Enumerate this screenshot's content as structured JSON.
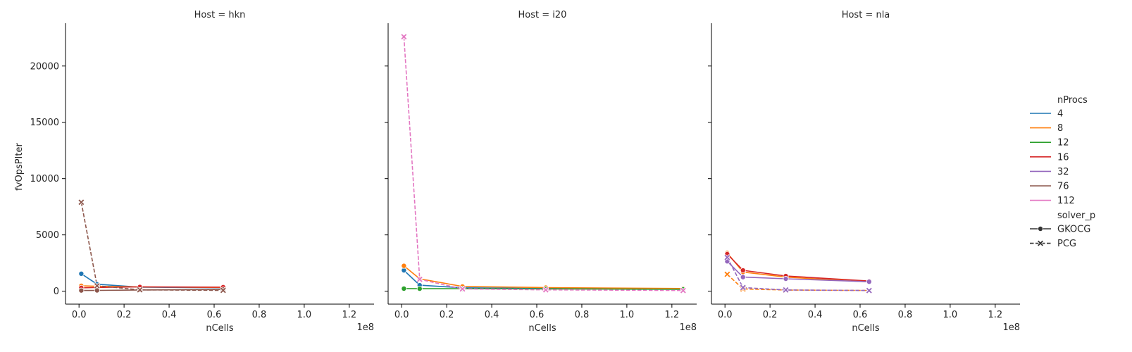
{
  "chart_data": {
    "type": "line",
    "y_label": "fvOpsPIter",
    "x_label": "nCells",
    "x_offset_label": "1e8",
    "xlim": [
      -0.06,
      1.31
    ],
    "ylim": [
      -1150,
      23800
    ],
    "x_ticks": [
      0.0,
      0.2,
      0.4,
      0.6,
      0.8,
      1.0,
      1.2
    ],
    "x_tick_labels": [
      "0.0",
      "0.2",
      "0.4",
      "0.6",
      "0.8",
      "1.0",
      "1.2"
    ],
    "y_ticks": [
      0,
      5000,
      10000,
      15000,
      20000
    ],
    "y_tick_labels": [
      "0",
      "5000",
      "10000",
      "15000",
      "20000"
    ],
    "legend": {
      "title_hue": "nProcs",
      "title_style": "solver_p",
      "hue_entries": [
        {
          "label": "4",
          "color": "#1f77b4"
        },
        {
          "label": "8",
          "color": "#ff7f0e"
        },
        {
          "label": "12",
          "color": "#2ca02c"
        },
        {
          "label": "16",
          "color": "#d62728"
        },
        {
          "label": "32",
          "color": "#9467bd"
        },
        {
          "label": "76",
          "color": "#8c564b"
        },
        {
          "label": "112",
          "color": "#e377c2"
        }
      ],
      "style_entries": [
        {
          "label": "GKOCG",
          "marker": "circle",
          "dash": "solid"
        },
        {
          "label": "PCG",
          "marker": "x",
          "dash": "dashed"
        }
      ]
    },
    "panels": [
      {
        "title": "Host = hkn",
        "series": [
          {
            "nprocs": "4",
            "solver": "GKOCG",
            "x": [
              0.01,
              0.08,
              0.27,
              0.64
            ],
            "y": [
              1550,
              620,
              360,
              310
            ]
          },
          {
            "nprocs": "8",
            "solver": "GKOCG",
            "x": [
              0.01,
              0.08,
              0.27,
              0.64
            ],
            "y": [
              480,
              430,
              380,
              330
            ]
          },
          {
            "nprocs": "16",
            "solver": "GKOCG",
            "x": [
              0.01,
              0.08,
              0.27,
              0.64
            ],
            "y": [
              300,
              330,
              380,
              360
            ]
          },
          {
            "nprocs": "76",
            "solver": "GKOCG",
            "x": [
              0.01,
              0.08,
              0.27,
              0.64
            ],
            "y": [
              60,
              70,
              110,
              150
            ]
          },
          {
            "nprocs": "76",
            "solver": "PCG",
            "x": [
              0.01,
              0.08,
              0.27,
              0.64
            ],
            "y": [
              7900,
              480,
              120,
              70
            ]
          }
        ]
      },
      {
        "title": "Host = i20",
        "series": [
          {
            "nprocs": "4",
            "solver": "GKOCG",
            "x": [
              0.01,
              0.08,
              0.27,
              0.64,
              1.25
            ],
            "y": [
              1850,
              530,
              300,
              250,
              180
            ]
          },
          {
            "nprocs": "8",
            "solver": "GKOCG",
            "x": [
              0.01,
              0.08,
              0.27,
              0.64,
              1.25
            ],
            "y": [
              2250,
              1100,
              420,
              320,
              240
            ]
          },
          {
            "nprocs": "12",
            "solver": "GKOCG",
            "x": [
              0.01,
              0.08,
              0.27,
              0.64,
              1.25
            ],
            "y": [
              230,
              220,
              220,
              200,
              170
            ]
          },
          {
            "nprocs": "112",
            "solver": "PCG",
            "x": [
              0.01,
              0.08,
              0.27,
              0.64,
              1.25
            ],
            "y": [
              22600,
              1050,
              200,
              120,
              60
            ]
          }
        ]
      },
      {
        "title": "Host = nla",
        "series": [
          {
            "nprocs": "8",
            "solver": "GKOCG",
            "x": [
              0.01,
              0.08,
              0.27,
              0.64
            ],
            "y": [
              3400,
              1700,
              1250,
              820
            ]
          },
          {
            "nprocs": "8",
            "solver": "PCG",
            "x": [
              0.01,
              0.08,
              0.27,
              0.64
            ],
            "y": [
              1500,
              200,
              100,
              60
            ]
          },
          {
            "nprocs": "16",
            "solver": "GKOCG",
            "x": [
              0.01,
              0.08,
              0.27,
              0.64
            ],
            "y": [
              3300,
              1850,
              1350,
              900
            ]
          },
          {
            "nprocs": "32",
            "solver": "GKOCG",
            "x": [
              0.01,
              0.08,
              0.27,
              0.64
            ],
            "y": [
              2650,
              1250,
              1100,
              840
            ]
          },
          {
            "nprocs": "32",
            "solver": "PCG",
            "x": [
              0.01,
              0.08,
              0.27,
              0.64
            ],
            "y": [
              3000,
              320,
              110,
              60
            ]
          }
        ]
      }
    ]
  }
}
